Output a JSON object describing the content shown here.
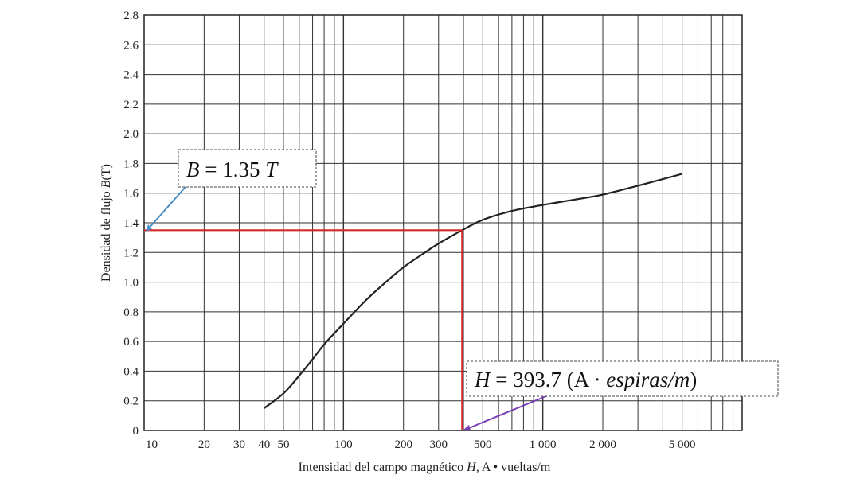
{
  "chart_data": {
    "type": "line",
    "ylabel_prefix": "Densidad de flujo ",
    "ylabel_var": "B",
    "ylabel_suffix": "(T)",
    "xlabel_prefix": "Intensidad del campo magnético ",
    "xlabel_var": "H,",
    "xlabel_suffix": " A • vueltas/m",
    "x_scale": "log",
    "xlim": [
      10,
      10000
    ],
    "ylim": [
      0,
      2.8
    ],
    "grid": true,
    "x_ticks": [
      {
        "value": 10,
        "label": "10"
      },
      {
        "value": 20,
        "label": "20"
      },
      {
        "value": 30,
        "label": "30"
      },
      {
        "value": 40,
        "label": "40"
      },
      {
        "value": 50,
        "label": "50"
      },
      {
        "value": 100,
        "label": "100"
      },
      {
        "value": 200,
        "label": "200"
      },
      {
        "value": 300,
        "label": "300"
      },
      {
        "value": 500,
        "label": "500"
      },
      {
        "value": 1000,
        "label": "1 000"
      },
      {
        "value": 2000,
        "label": "2 000"
      },
      {
        "value": 5000,
        "label": "5 000"
      }
    ],
    "y_ticks": [
      "0",
      "0.2",
      "0.4",
      "0.6",
      "0.8",
      "1.0",
      "1.2",
      "1.4",
      "1.6",
      "1.8",
      "2.0",
      "2.2",
      "2.4",
      "2.6",
      "2.8"
    ],
    "y_tick_values": [
      0,
      0.2,
      0.4,
      0.6,
      0.8,
      1.0,
      1.2,
      1.4,
      1.6,
      1.8,
      2.0,
      2.2,
      2.4,
      2.6,
      2.8
    ],
    "series": [
      {
        "x": [
          40,
          50,
          60,
          70,
          80,
          100,
          130,
          160,
          200,
          250,
          300,
          393.7,
          500,
          700,
          1000,
          1500,
          2000,
          3000,
          5000
        ],
        "y": [
          0.15,
          0.25,
          0.37,
          0.48,
          0.58,
          0.72,
          0.88,
          0.99,
          1.1,
          1.19,
          1.26,
          1.35,
          1.42,
          1.48,
          1.52,
          1.56,
          1.59,
          1.65,
          1.73
        ]
      }
    ],
    "marked_point": {
      "x": 393.7,
      "y": 1.35
    },
    "colors": {
      "curve": "#222222",
      "marker": "#d62828",
      "b_arrow": "#4a8fc7",
      "h_arrow": "#7b3fb5",
      "grid": "#333333"
    }
  },
  "annotations": {
    "b_value": {
      "var": "B",
      "eq": " = 1.35 ",
      "unit": "T"
    },
    "h_value": {
      "var": "H",
      "eq": " = 393.7 (A · ",
      "unit": "espiras/m",
      "close": ")"
    }
  }
}
